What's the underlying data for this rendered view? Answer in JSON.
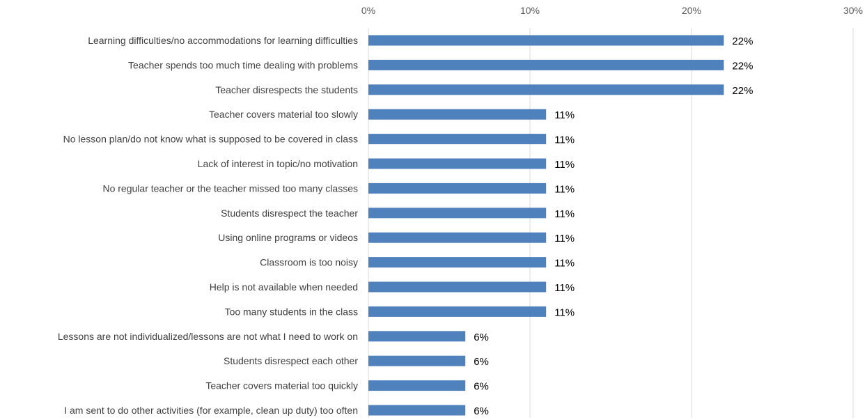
{
  "chart_data": {
    "type": "bar",
    "orientation": "horizontal",
    "title": "",
    "xlabel": "",
    "ylabel": "",
    "xlim": [
      0,
      30
    ],
    "x_ticks": [
      "0%",
      "10%",
      "20%",
      "30%"
    ],
    "x_tick_values": [
      0,
      10,
      20,
      30
    ],
    "grid": true,
    "legend": "none",
    "bar_color": "#4f81bd",
    "categories": [
      "Learning difficulties/no accommodations for learning difficulties",
      "Teacher spends too much time dealing with problems",
      "Teacher disrespects the students",
      "Teacher covers material too slowly",
      "No lesson plan/do not know what is supposed to be covered in class",
      "Lack of interest in topic/no motivation",
      "No regular teacher or the teacher missed too many classes",
      "Students disrespect the teacher",
      "Using online programs or videos",
      "Classroom is too noisy",
      "Help is not available when needed",
      "Too many students in the class",
      "Lessons are not individualized/lessons are not what I need to work on",
      "Students disrespect each other",
      "Teacher covers material too quickly",
      "I am sent to do other activities (for example, clean up duty) too often"
    ],
    "values": [
      22,
      22,
      22,
      11,
      11,
      11,
      11,
      11,
      11,
      11,
      11,
      11,
      6,
      6,
      6,
      6
    ],
    "value_labels": [
      "22%",
      "22%",
      "22%",
      "11%",
      "11%",
      "11%",
      "11%",
      "11%",
      "11%",
      "11%",
      "11%",
      "11%",
      "6%",
      "6%",
      "6%",
      "6%"
    ]
  }
}
